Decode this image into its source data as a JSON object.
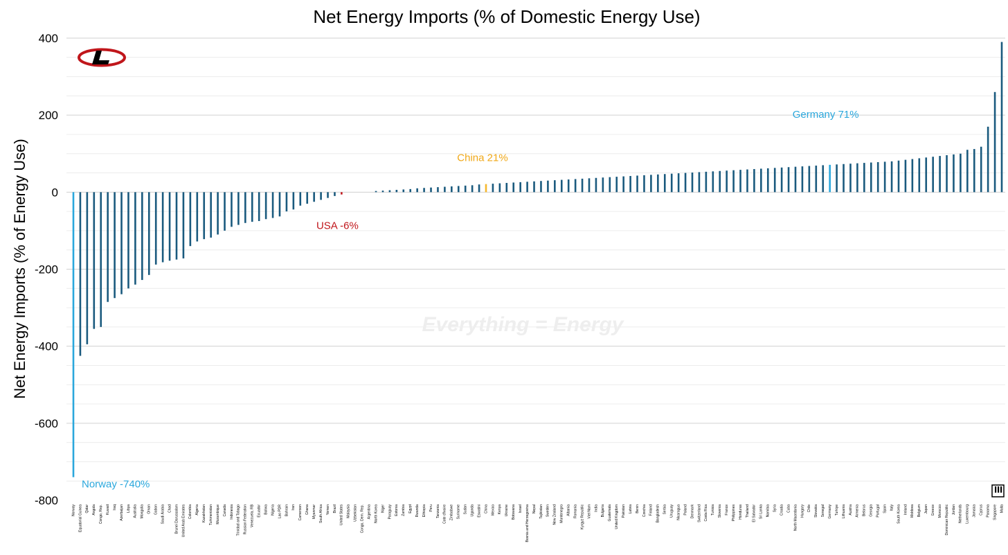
{
  "chart_data": {
    "type": "bar",
    "title": "Net Energy Imports (% of Domestic Energy Use)",
    "xlabel": "",
    "ylabel": "Net Energy Imports (% of Energy Use)",
    "ylim": [
      -800,
      400
    ],
    "yticks": [
      400,
      200,
      0,
      -200,
      -400,
      -600,
      -800
    ],
    "grid": "horizontal",
    "watermark": "Everything = Energy",
    "colors": {
      "default": "#1a5a7e",
      "highlight_blue": "#2aa7dc",
      "china": "#f5b82e",
      "usa": "#c0161b"
    },
    "categories": [
      "Norway",
      "Equatorial Guinea",
      "Qatar",
      "Angola",
      "Congo, Rep.",
      "Kuwait",
      "Iraq",
      "Azerbaijan",
      "Libya",
      "Australia",
      "Mongolia",
      "Oman",
      "Gabon",
      "Saudi Arabia",
      "Chad",
      "Brunei Darussalam",
      "United Arab Emirates",
      "Colombia",
      "Algeria",
      "Kazakhstan",
      "Turkmenistan",
      "Mozambique",
      "Canada",
      "Indonesia",
      "Trinidad and Tobago",
      "Russian Federation",
      "Venezuela, RB",
      "Ecuador",
      "Bolivia",
      "Nigeria",
      "Lao PDR",
      "Bahrain",
      "Iran",
      "Cameroon",
      "Ghana",
      "Myanmar",
      "South Africa",
      "Yemen",
      "Brazil",
      "United States",
      "Malaysia",
      "Uzbekistan",
      "Congo, Dem. Rep.",
      "Argentina",
      "North Korea",
      "Niger",
      "Paraguay",
      "Estonia",
      "Zambia",
      "Egypt",
      "Rwanda",
      "Ethiopia",
      "Peru",
      "Tanzania",
      "Cote d'Ivoire",
      "Zimbabwe",
      "Suriname",
      "Sudan",
      "Uganda",
      "Eswatini",
      "China",
      "Mexico",
      "Kenya",
      "Ukraine",
      "Botswana",
      "Israel",
      "Bosnia and Herzegovina",
      "Nepal",
      "Tajikistan",
      "Sweden",
      "New Zealand",
      "Montenegro",
      "Albania",
      "Romania",
      "Kyrgyz Republic",
      "Viet Nam",
      "India",
      "Bulgaria",
      "Guatemala",
      "United Kingdom",
      "Pakistan",
      "Latvia",
      "Benin",
      "Czechia",
      "Finland",
      "Bangladesh",
      "Serbia",
      "Uruguay",
      "Nicaragua",
      "Poland",
      "Denmark",
      "Switzerland",
      "Costa Rica",
      "Tunisia",
      "Slovenia",
      "France",
      "Philippines",
      "Honduras",
      "Thailand",
      "El Salvador",
      "Sri Lanka",
      "Namibia",
      "Syria",
      "Croatia",
      "Cuba",
      "North Macedonia",
      "Hungary",
      "Chile",
      "Slovakia",
      "Senegal",
      "Germany",
      "Turkiye",
      "Lithuania",
      "Austria",
      "Armenia",
      "Belarus",
      "Georgia",
      "Portugal",
      "Spain",
      "Italy",
      "South Korea",
      "Ireland",
      "Moldova",
      "Belgium",
      "Japan",
      "Greece",
      "Morocco",
      "Dominican Republic",
      "Jordan",
      "Netherlands",
      "Luxembourg",
      "Jamaica",
      "Cyprus",
      "Panama",
      "Singapore",
      "Malta"
    ],
    "values": [
      -740,
      -425,
      -395,
      -355,
      -350,
      -285,
      -275,
      -265,
      -250,
      -240,
      -228,
      -215,
      -188,
      -182,
      -178,
      -175,
      -172,
      -140,
      -128,
      -122,
      -118,
      -110,
      -100,
      -90,
      -85,
      -80,
      -77,
      -75,
      -70,
      -67,
      -63,
      -50,
      -45,
      -35,
      -30,
      -25,
      -20,
      -15,
      -10,
      -6,
      0,
      0,
      0,
      0,
      3,
      4,
      5,
      6,
      7,
      8,
      10,
      11,
      12,
      13,
      14,
      15,
      16,
      17,
      18,
      20,
      21,
      22,
      23,
      24,
      25,
      26,
      27,
      28,
      29,
      30,
      31,
      32,
      33,
      34,
      35,
      36,
      37,
      38,
      39,
      40,
      41,
      42,
      43,
      44,
      45,
      46,
      47,
      48,
      49,
      50,
      51,
      52,
      53,
      54,
      55,
      56,
      57,
      58,
      59,
      60,
      61,
      62,
      63,
      64,
      65,
      66,
      67,
      68,
      69,
      70,
      71,
      72,
      73,
      74,
      75,
      76,
      77,
      78,
      79,
      80,
      82,
      84,
      86,
      88,
      90,
      92,
      94,
      96,
      98,
      100,
      110,
      112,
      118,
      170,
      260,
      390
    ],
    "highlights": {
      "Norway": "highlight_blue",
      "Germany": "highlight_blue",
      "China": "china",
      "United States": "usa"
    },
    "annotations": [
      {
        "text": "Norway -740%",
        "color": "#2aa7dc",
        "anchor": "Norway",
        "value": -740
      },
      {
        "text": "China 21%",
        "color": "#f0a818",
        "anchor": "China",
        "value": 21
      },
      {
        "text": "USA -6%",
        "color": "#c0161b",
        "anchor": "United States",
        "value": -6
      },
      {
        "text": "Germany 71%",
        "color": "#2aa7dc",
        "anchor": "Germany",
        "value": 71
      }
    ]
  }
}
